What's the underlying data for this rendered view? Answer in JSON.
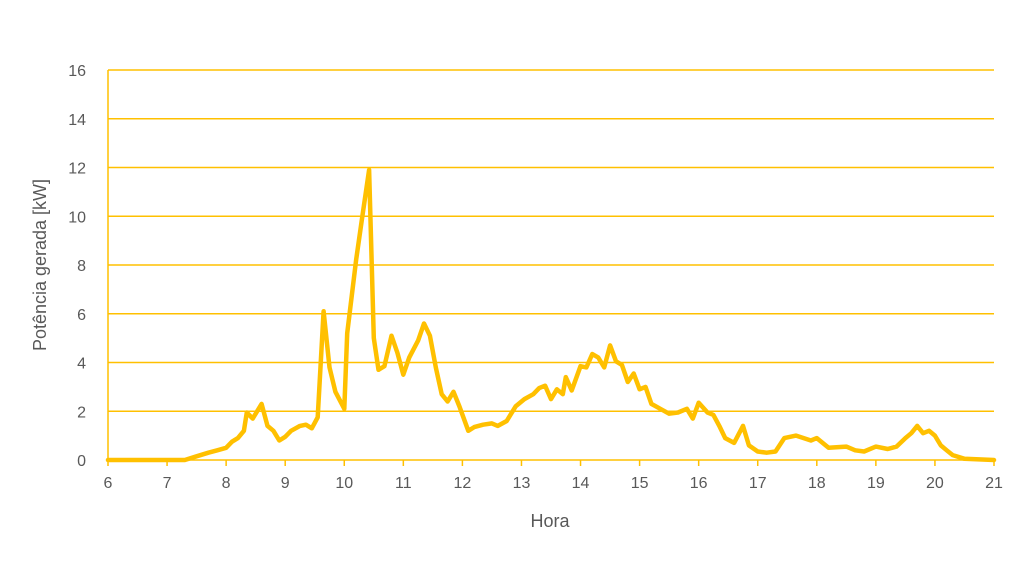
{
  "chart_data": {
    "type": "line",
    "title": "",
    "xlabel": "Hora",
    "ylabel": "Potência gerada [kW]",
    "xlim": [
      6,
      21
    ],
    "ylim": [
      0,
      16
    ],
    "x_ticks": [
      6,
      7,
      8,
      9,
      10,
      11,
      12,
      13,
      14,
      15,
      16,
      17,
      18,
      19,
      20,
      21
    ],
    "y_ticks": [
      0,
      2,
      4,
      6,
      8,
      10,
      12,
      14,
      16
    ],
    "grid": "horizontal",
    "legend": "none",
    "colors": {
      "line": "#FFC000",
      "grid": "#FFC000",
      "text": "#595959"
    },
    "series": [
      {
        "x": [
          6,
          7,
          7.3,
          7.5,
          7.7,
          7.85,
          8,
          8.1,
          8.2,
          8.3,
          8.35,
          8.45,
          8.6,
          8.7,
          8.8,
          8.9,
          9.0,
          9.1,
          9.25,
          9.35,
          9.45,
          9.55,
          9.65,
          9.75,
          9.85,
          10.0,
          10.05,
          10.2,
          10.3,
          10.42,
          10.5,
          10.58,
          10.68,
          10.8,
          10.9,
          11.0,
          11.1,
          11.25,
          11.35,
          11.45,
          11.55,
          11.65,
          11.75,
          11.85,
          11.95,
          12.1,
          12.2,
          12.35,
          12.5,
          12.6,
          12.75,
          12.9,
          13.05,
          13.2,
          13.3,
          13.4,
          13.5,
          13.6,
          13.7,
          13.75,
          13.85,
          14.0,
          14.1,
          14.2,
          14.3,
          14.4,
          14.5,
          14.6,
          14.7,
          14.8,
          14.9,
          15.0,
          15.1,
          15.2,
          15.35,
          15.5,
          15.65,
          15.8,
          15.9,
          16.0,
          16.15,
          16.25,
          16.35,
          16.45,
          16.6,
          16.75,
          16.85,
          17.0,
          17.15,
          17.3,
          17.45,
          17.65,
          17.9,
          18.0,
          18.2,
          18.5,
          18.65,
          18.8,
          19.0,
          19.2,
          19.35,
          19.5,
          19.6,
          19.7,
          19.8,
          19.9,
          20.0,
          20.1,
          20.2,
          20.3,
          20.5,
          21
        ],
        "y": [
          0,
          0,
          0,
          0.15,
          0.3,
          0.4,
          0.5,
          0.75,
          0.9,
          1.2,
          1.95,
          1.7,
          2.3,
          1.4,
          1.2,
          0.8,
          0.95,
          1.2,
          1.4,
          1.45,
          1.3,
          1.75,
          6.1,
          3.8,
          2.8,
          2.1,
          5.2,
          8.2,
          9.9,
          11.9,
          5.0,
          3.7,
          3.85,
          5.1,
          4.4,
          3.5,
          4.2,
          4.9,
          5.6,
          5.1,
          3.8,
          2.7,
          2.4,
          2.8,
          2.2,
          1.2,
          1.35,
          1.45,
          1.5,
          1.4,
          1.6,
          2.2,
          2.5,
          2.7,
          2.95,
          3.05,
          2.5,
          2.9,
          2.7,
          3.4,
          2.85,
          3.85,
          3.8,
          4.35,
          4.2,
          3.8,
          4.7,
          4.05,
          3.9,
          3.2,
          3.55,
          2.9,
          3.0,
          2.3,
          2.1,
          1.9,
          1.95,
          2.1,
          1.7,
          2.35,
          1.95,
          1.85,
          1.4,
          0.9,
          0.7,
          1.4,
          0.6,
          0.35,
          0.3,
          0.35,
          0.9,
          1.0,
          0.8,
          0.9,
          0.5,
          0.55,
          0.4,
          0.35,
          0.55,
          0.45,
          0.55,
          0.9,
          1.1,
          1.4,
          1.1,
          1.2,
          1.0,
          0.6,
          0.4,
          0.2,
          0.05,
          0
        ]
      }
    ]
  }
}
